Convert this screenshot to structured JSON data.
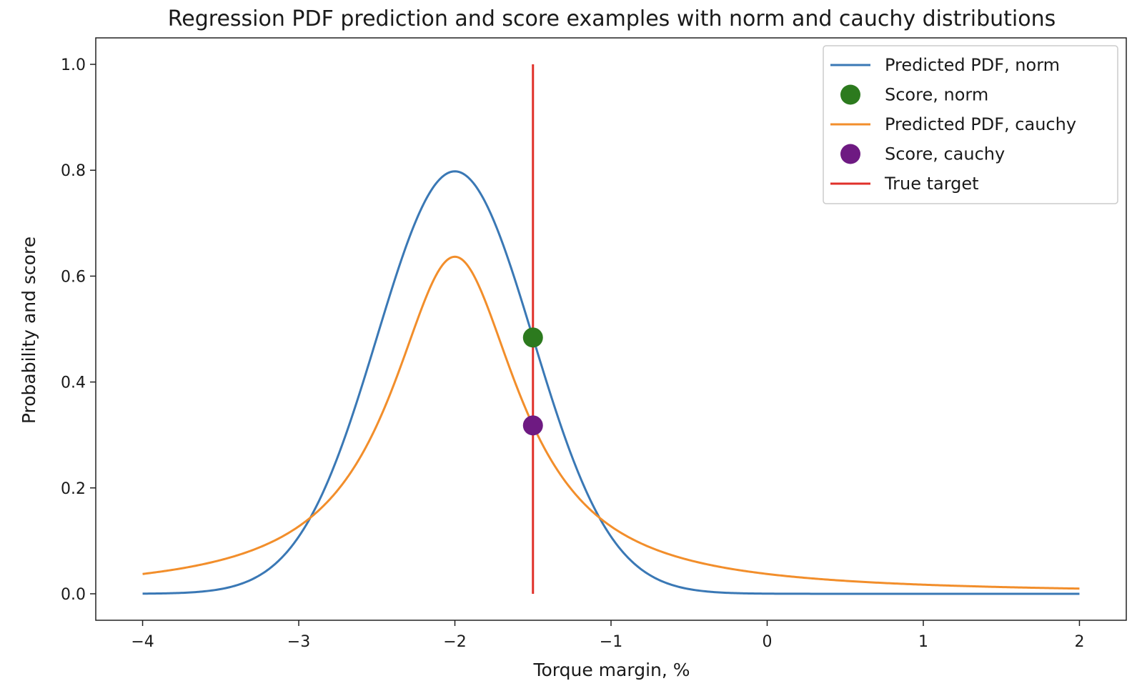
{
  "chart_data": {
    "type": "line",
    "title": "Regression PDF prediction and score examples with norm and cauchy distributions",
    "xlabel": "Torque margin, %",
    "ylabel": "Probability and score",
    "xlim": [
      -4.3,
      2.3
    ],
    "ylim": [
      -0.05,
      1.05
    ],
    "xticks": [
      -4,
      -3,
      -2,
      -1,
      0,
      1,
      2
    ],
    "xtick_labels": [
      "−4",
      "−3",
      "−2",
      "−1",
      "0",
      "1",
      "2"
    ],
    "yticks": [
      0.0,
      0.2,
      0.4,
      0.6,
      0.8,
      1.0
    ],
    "ytick_labels": [
      "0.0",
      "0.2",
      "0.4",
      "0.6",
      "0.8",
      "1.0"
    ],
    "grid": false,
    "legend_position": "top-right",
    "colors": {
      "norm": "#3a78b5",
      "cauchy": "#f28e2b",
      "score_norm": "#2c7a1e",
      "score_cauchy": "#6e1a82",
      "true_target": "#e0302a"
    },
    "distributions": {
      "norm": {
        "loc": -2.0,
        "scale": 0.5
      },
      "cauchy": {
        "loc": -2.0,
        "scale": 0.5
      }
    },
    "x_range": [
      -4,
      2
    ],
    "series": [
      {
        "name": "Predicted PDF, norm",
        "kind": "line",
        "color_key": "norm",
        "curve": "norm"
      },
      {
        "name": "Score, norm",
        "kind": "point",
        "color_key": "score_norm",
        "x": -1.5,
        "y": 0.484
      },
      {
        "name": "Predicted PDF, cauchy",
        "kind": "line",
        "color_key": "cauchy",
        "curve": "cauchy"
      },
      {
        "name": "Score, cauchy",
        "kind": "point",
        "color_key": "score_cauchy",
        "x": -1.5,
        "y": 0.318
      },
      {
        "name": "True target",
        "kind": "vline",
        "color_key": "true_target",
        "x": -1.5,
        "y": [
          0.0,
          1.0
        ]
      }
    ]
  }
}
